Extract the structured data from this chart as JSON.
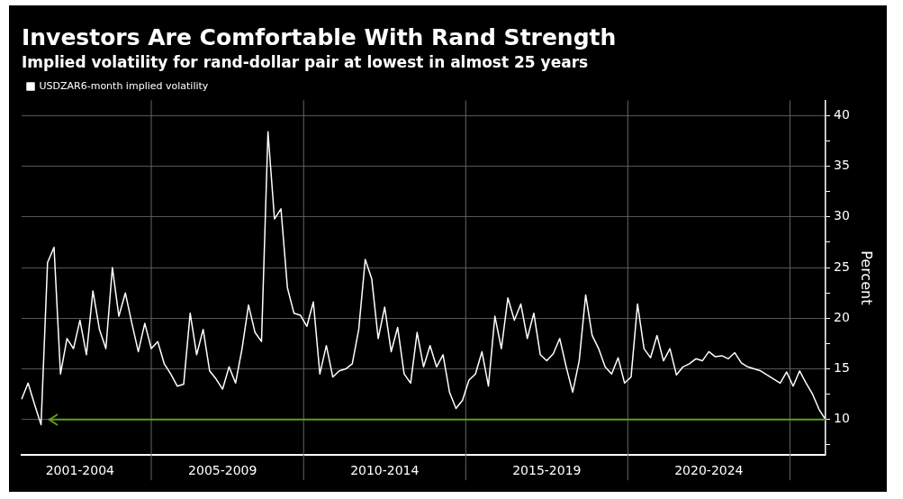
{
  "chart_data": {
    "type": "line",
    "title": "Investors Are Comfortable With Rand Strength",
    "subtitle": "Implied volatility for rand-dollar pair at lowest in almost 25 years",
    "ylabel": "Percent",
    "categories": [
      null,
      null,
      null,
      null,
      null,
      null,
      null,
      null,
      null,
      "2001-2004",
      null,
      null,
      null,
      null,
      null,
      null,
      null,
      null,
      null,
      null,
      null,
      null,
      null,
      null,
      null,
      null,
      null,
      null,
      null,
      null,
      null,
      "2005-2009",
      null,
      null,
      null,
      null,
      null,
      null,
      null,
      null,
      null,
      null,
      null,
      null,
      null,
      null,
      null,
      null,
      null,
      null,
      null,
      null,
      null,
      null,
      null,
      null,
      "2010-2014",
      null,
      null,
      null,
      null,
      null,
      null,
      null,
      null,
      null,
      null,
      null,
      null,
      null,
      null,
      null,
      null,
      null,
      null,
      null,
      null,
      null,
      null,
      null,
      null,
      "2015-2019",
      null,
      null,
      null,
      null,
      null,
      null,
      null,
      null,
      null,
      null,
      null,
      null,
      null,
      null,
      null,
      null,
      null,
      null,
      null,
      null,
      null,
      null,
      null,
      null,
      "2020-2024",
      null,
      null,
      null,
      null,
      null,
      null,
      null,
      null,
      null,
      null,
      null,
      null,
      null,
      null,
      null,
      null,
      null,
      null
    ],
    "series": [
      {
        "name": "USDZAR6-month implied volatility",
        "color": "#ffffff",
        "values": [
          12.0,
          13.6,
          11.5,
          9.5,
          25.5,
          27.0,
          14.5,
          18.0,
          17.0,
          19.8,
          16.4,
          22.7,
          18.9,
          17.0,
          25.0,
          20.2,
          22.5,
          19.5,
          16.7,
          19.5,
          17.0,
          17.7,
          15.5,
          14.5,
          13.3,
          13.5,
          20.5,
          16.4,
          18.9,
          14.8,
          14.0,
          13.0,
          15.2,
          13.6,
          17.0,
          21.3,
          18.6,
          17.7,
          38.4,
          29.8,
          30.8,
          23.0,
          20.5,
          20.3,
          19.2,
          21.6,
          14.5,
          17.3,
          14.2,
          14.8,
          15.0,
          15.5,
          18.9,
          25.8,
          23.9,
          18.0,
          21.1,
          16.7,
          19.1,
          14.5,
          13.6,
          18.6,
          15.2,
          17.3,
          15.2,
          16.4,
          12.7,
          11.1,
          11.9,
          13.9,
          14.5,
          16.7,
          13.3,
          20.2,
          17.0,
          22.0,
          19.8,
          21.4,
          18.0,
          20.5,
          16.4,
          15.8,
          16.5,
          18.0,
          15.2,
          12.7,
          15.8,
          22.3,
          18.3,
          17.0,
          15.2,
          14.5,
          16.1,
          13.6,
          14.2,
          21.4,
          17.0,
          16.1,
          18.3,
          15.8,
          17.0,
          14.4,
          15.2,
          15.5,
          16.0,
          15.8,
          16.7,
          16.2,
          16.3,
          16.0,
          16.6,
          15.6,
          15.2,
          15.0,
          14.8,
          14.4,
          14.0,
          13.6,
          14.7,
          13.3,
          14.8,
          13.6,
          12.5,
          11.0,
          10.0
        ]
      }
    ],
    "ylim": [
      6.5,
      41.5
    ],
    "yticks": [
      {
        "value": 7.5,
        "label": null
      },
      10,
      {
        "value": 12.5,
        "label": null
      },
      15,
      {
        "value": 17.5,
        "label": null
      },
      20,
      {
        "value": 22.5,
        "label": null
      },
      25,
      {
        "value": 27.5,
        "label": null
      },
      30,
      {
        "value": 32.5,
        "label": null
      },
      35,
      {
        "value": 37.5,
        "label": null
      },
      40
    ],
    "ref_lines": [
      {
        "axis": "y",
        "value": 10,
        "color": "#5c9e1e"
      }
    ],
    "grid": true,
    "legend": "top left",
    "marker": "none",
    "line_style": "solid"
  }
}
